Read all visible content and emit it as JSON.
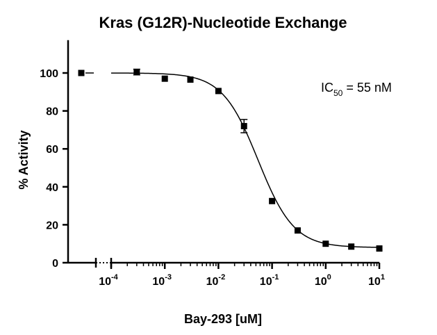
{
  "chart_data": {
    "type": "scatter",
    "title": "Kras (G12R)-Nucleotide Exchange",
    "xlabel": "Bay-293 [uM]",
    "ylabel": "% Activity",
    "x_scale": "log",
    "x_axis_break": true,
    "ylim": [
      0,
      110
    ],
    "xlim": [
      3e-05,
      10
    ],
    "yticks": [
      0,
      20,
      40,
      60,
      80,
      100
    ],
    "xticks": [
      {
        "value": 0.0001,
        "base": "10",
        "exp": "-4"
      },
      {
        "value": 0.001,
        "base": "10",
        "exp": "-3"
      },
      {
        "value": 0.01,
        "base": "10",
        "exp": "-2"
      },
      {
        "value": 0.1,
        "base": "10",
        "exp": "-1"
      },
      {
        "value": 1,
        "base": "10",
        "exp": "0"
      },
      {
        "value": 10,
        "base": "10",
        "exp": "1"
      }
    ],
    "control_point": {
      "y": 100
    },
    "points": [
      {
        "x": 0.0003,
        "y": 100.5,
        "err": 1.5
      },
      {
        "x": 0.001,
        "y": 97.0,
        "err": 0
      },
      {
        "x": 0.003,
        "y": 96.5,
        "err": 0
      },
      {
        "x": 0.01,
        "y": 90.5,
        "err": 0
      },
      {
        "x": 0.03,
        "y": 72.0,
        "err": 3.5
      },
      {
        "x": 0.1,
        "y": 32.5,
        "err": 0
      },
      {
        "x": 0.3,
        "y": 17.0,
        "err": 0
      },
      {
        "x": 1,
        "y": 10.0,
        "err": 0
      },
      {
        "x": 3,
        "y": 8.5,
        "err": 0
      },
      {
        "x": 10,
        "y": 7.5,
        "err": 0
      }
    ],
    "fit": {
      "top": 100,
      "bottom": 8,
      "ic50": 0.055,
      "hill": 1.3
    },
    "annotation": {
      "prefix": "IC",
      "sub": "50",
      "suffix": " = 55 nM"
    },
    "grid": false,
    "legend": "none"
  }
}
